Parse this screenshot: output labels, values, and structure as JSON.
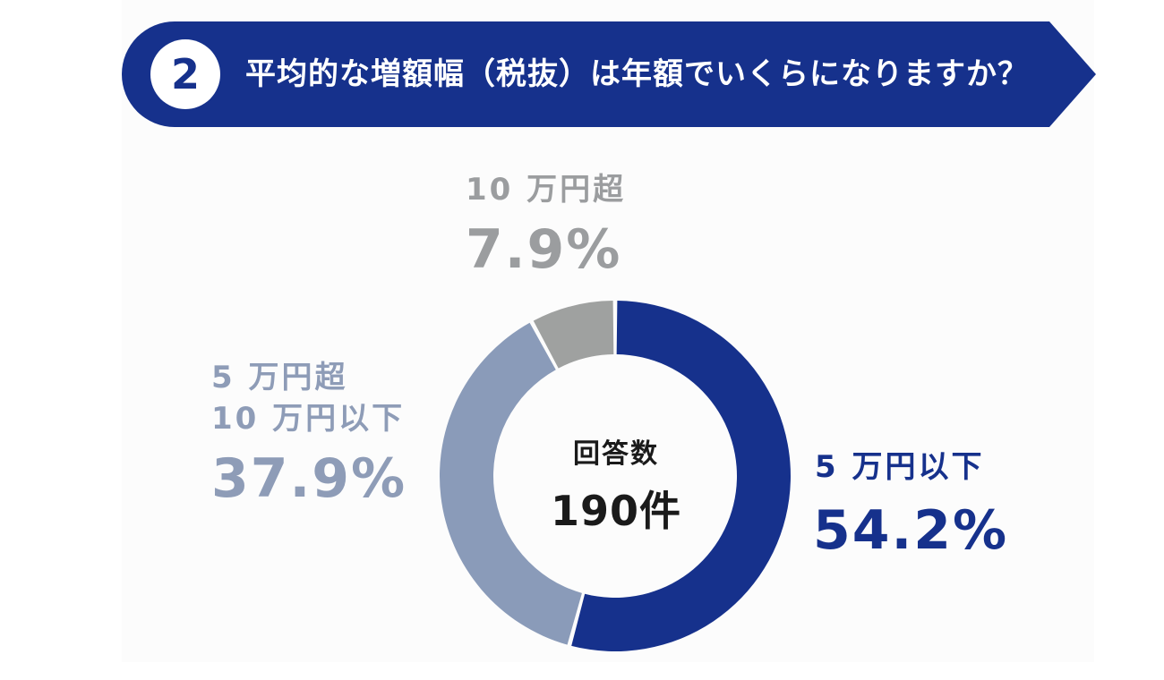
{
  "header": {
    "number": "2",
    "question": "平均的な増額幅（税抜）は年額でいくらになりますか？"
  },
  "center": {
    "label": "回答数",
    "count": "190件"
  },
  "labels": {
    "under5": {
      "category": "5 万円以下",
      "percent": "54.2%"
    },
    "mid": {
      "category_line1": "5 万円超",
      "category_line2": "10 万円以下",
      "percent": "37.9%"
    },
    "over10": {
      "category": "10 万円超",
      "percent": "7.9%"
    }
  },
  "colors": {
    "navy": "#16318c",
    "slate": "#8a9bb9",
    "gray": "#9fa1a0",
    "banner": "#16318c"
  },
  "chart_data": {
    "type": "pie",
    "title": "平均的な増額幅（税抜）は年額でいくらになりますか？",
    "total_label": "回答数",
    "total": 190,
    "slices": [
      {
        "label": "5 万円以下",
        "value": 54.2,
        "color": "#16318c"
      },
      {
        "label": "5 万円超 10 万円以下",
        "value": 37.9,
        "color": "#8a9bb9"
      },
      {
        "label": "10 万円超",
        "value": 7.9,
        "color": "#9fa1a0"
      }
    ]
  }
}
